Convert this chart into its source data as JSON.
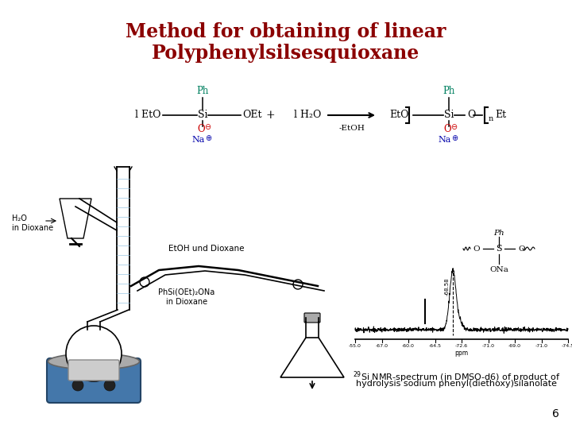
{
  "title_line1": "Method for obtaining of linear",
  "title_line2": "Polyphenylsilsesquioxane",
  "title_color": "#8B0000",
  "title_fontsize": 17,
  "title_fontweight": "bold",
  "background_color": "#FFFFFF",
  "slide_number": "6",
  "caption_superscript": "29",
  "caption_line1": "Si NMR-spectrum (in DMSO-d6) of product of",
  "caption_line2": "hydrolysis sodium phenyl(diethoxy)silanolate",
  "caption_fontsize": 8.0,
  "teal_color": "#008060",
  "blue_color": "#0000AA",
  "red_color": "#CC0000",
  "nmr_tick_labels": [
    "-55.0",
    "-67.0",
    "-60.0",
    "-64.5",
    "-72.6\nppm",
    "-71.0",
    "-69.0",
    "-71.0",
    "-74.5"
  ],
  "nmr_peak_label": "-68.58"
}
